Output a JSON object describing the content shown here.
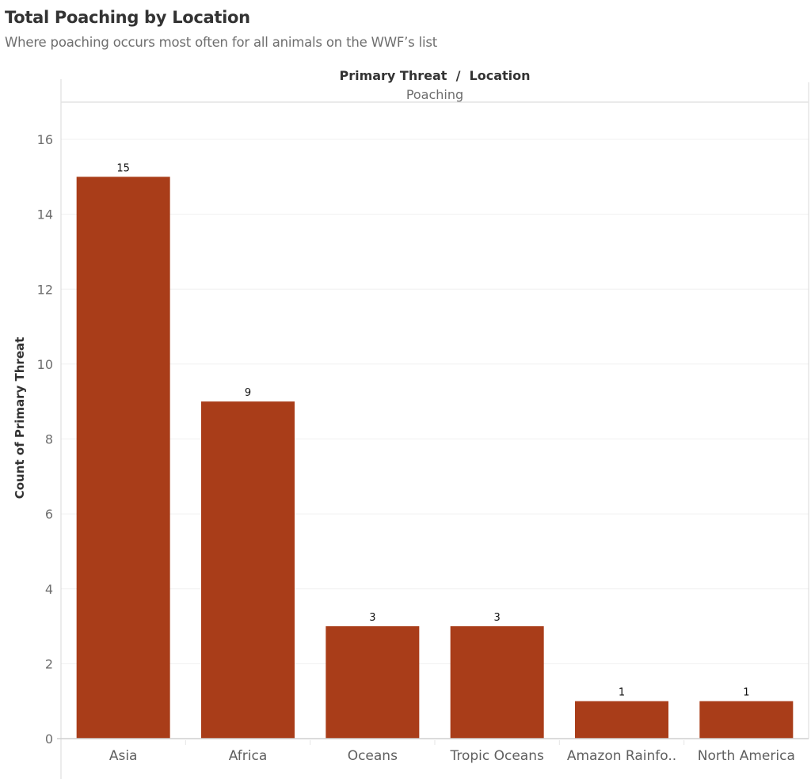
{
  "header": {
    "title": "Total Poaching by Location",
    "subtitle": "Where poaching occurs most often for all animals on the WWF’s list"
  },
  "chart_data": {
    "type": "bar",
    "title": "Total Poaching by Location",
    "subtitle": "Where poaching occurs most often for all animals on the WWF’s list",
    "column_header_title": "Primary Threat  /  Location",
    "column_header_value": "Poaching",
    "xlabel": "",
    "ylabel": "Count of Primary Threat",
    "categories": [
      "Asia",
      "Africa",
      "Oceans",
      "Tropic Oceans",
      "Amazon Rainfo..",
      "North America"
    ],
    "values": [
      15,
      9,
      3,
      3,
      1,
      1
    ],
    "data_labels": [
      "15",
      "9",
      "3",
      "3",
      "1",
      "1"
    ],
    "ylim": [
      0,
      16
    ],
    "yticks": [
      0,
      2,
      4,
      6,
      8,
      10,
      12,
      14,
      16
    ],
    "grid": true,
    "legend": "none",
    "bar_color": "#a93d19"
  }
}
